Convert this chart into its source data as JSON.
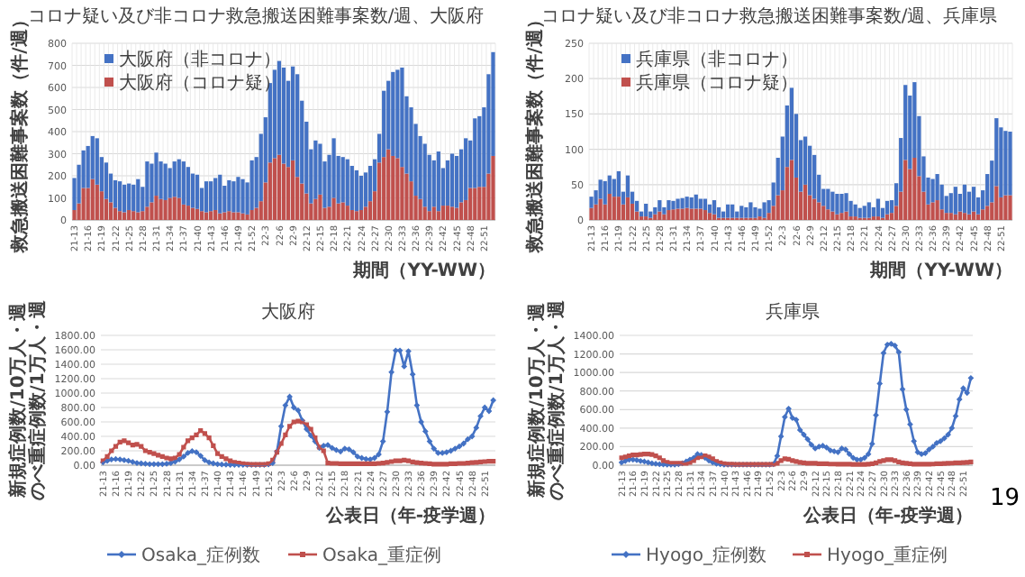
{
  "chart_data": [
    {
      "type": "bar",
      "stacked": true,
      "title": "コロナ疑い及び非コロナ救急搬送困難事案数/週、大阪府",
      "xlabel": "期間（YY-WW）",
      "ylabel": "救急搬送困難事案数（件/週）",
      "legend": "top left",
      "grid": true,
      "categories": [
        "21-13",
        null,
        null,
        "21-16",
        null,
        null,
        "21-19",
        null,
        null,
        "21-22",
        null,
        null,
        "21-25",
        null,
        null,
        "21-28",
        null,
        null,
        "21-31",
        null,
        null,
        "21-34",
        null,
        null,
        "21-37",
        null,
        null,
        "21-40",
        null,
        null,
        "21-43",
        null,
        null,
        "21-46",
        null,
        null,
        "21-49",
        null,
        null,
        "21-52",
        null,
        null,
        "22-3",
        null,
        null,
        "22-6",
        null,
        null,
        "22-9",
        null,
        null,
        "22-12",
        null,
        null,
        "22-15",
        null,
        null,
        "22-18",
        null,
        null,
        "22-21",
        null,
        null,
        "22-24",
        null,
        null,
        "22-27",
        null,
        null,
        "22-30",
        null,
        null,
        "22-33",
        null,
        null,
        "22-36",
        null,
        null,
        "22-39",
        null,
        null,
        "22-42",
        null,
        null,
        "22-45",
        null,
        null,
        "22-48",
        null,
        null,
        "22-51",
        null,
        null
      ],
      "ylim": [
        0,
        800
      ],
      "yticks": [
        0,
        100,
        200,
        300,
        400,
        500,
        600,
        700,
        800
      ],
      "series": [
        {
          "name": "大阪府（コロナ疑）",
          "color": "#c0504d",
          "values": [
            45,
            75,
            145,
            145,
            185,
            160,
            130,
            95,
            80,
            55,
            40,
            35,
            45,
            40,
            35,
            40,
            60,
            80,
            110,
            95,
            90,
            100,
            105,
            100,
            70,
            65,
            55,
            50,
            40,
            35,
            40,
            45,
            30,
            35,
            40,
            35,
            35,
            30,
            25,
            45,
            55,
            85,
            170,
            260,
            280,
            295,
            255,
            240,
            270,
            195,
            165,
            120,
            75,
            95,
            115,
            55,
            60,
            100,
            75,
            80,
            65,
            45,
            40,
            45,
            60,
            85,
            130,
            260,
            285,
            320,
            290,
            280,
            240,
            210,
            175,
            110,
            95,
            60,
            40,
            60,
            40,
            65,
            65,
            60,
            55,
            80,
            90,
            145,
            145,
            150,
            150,
            210,
            290
          ]
        },
        {
          "name": "大阪府（非コロナ）",
          "color": "#4472c4",
          "values": [
            145,
            175,
            170,
            190,
            195,
            210,
            155,
            165,
            130,
            125,
            135,
            125,
            120,
            120,
            150,
            110,
            205,
            175,
            195,
            170,
            165,
            135,
            160,
            175,
            195,
            175,
            155,
            155,
            105,
            140,
            135,
            145,
            175,
            120,
            140,
            140,
            160,
            155,
            145,
            225,
            230,
            305,
            295,
            360,
            400,
            425,
            435,
            390,
            425,
            465,
            375,
            325,
            245,
            265,
            230,
            210,
            235,
            270,
            215,
            205,
            210,
            200,
            185,
            155,
            155,
            160,
            145,
            130,
            300,
            310,
            380,
            400,
            450,
            350,
            335,
            325,
            285,
            285,
            255,
            210,
            270,
            170,
            205,
            240,
            235,
            240,
            280,
            215,
            315,
            320,
            360,
            450,
            470
          ]
        }
      ]
    },
    {
      "type": "bar",
      "stacked": true,
      "title": "コロナ疑い及び非コロナ救急搬送困難事案数/週、兵庫県",
      "xlabel": "期間（YY-WW）",
      "ylabel": "救急搬送困難事案数（件/週）",
      "legend": "top left",
      "grid": true,
      "categories": [
        "21-13",
        null,
        null,
        "21-16",
        null,
        null,
        "21-19",
        null,
        null,
        "21-22",
        null,
        null,
        "21-25",
        null,
        null,
        "21-28",
        null,
        null,
        "21-31",
        null,
        null,
        "21-34",
        null,
        null,
        "21-37",
        null,
        null,
        "21-40",
        null,
        null,
        "21-43",
        null,
        null,
        "21-46",
        null,
        null,
        "21-49",
        null,
        null,
        "21-52",
        null,
        null,
        "22-3",
        null,
        null,
        "22-6",
        null,
        null,
        "22-9",
        null,
        null,
        "22-12",
        null,
        null,
        "22-15",
        null,
        null,
        "22-18",
        null,
        null,
        "22-21",
        null,
        null,
        "22-24",
        null,
        null,
        "22-27",
        null,
        null,
        "22-30",
        null,
        null,
        "22-33",
        null,
        null,
        "22-36",
        null,
        null,
        "22-39",
        null,
        null,
        "22-42",
        null,
        null,
        "22-45",
        null,
        null,
        "22-48",
        null,
        null,
        "22-51",
        null,
        null
      ],
      "ylim": [
        0,
        250
      ],
      "yticks": [
        0,
        50,
        100,
        150,
        200,
        250
      ],
      "series": [
        {
          "name": "兵庫県（コロナ疑）",
          "color": "#c0504d",
          "values": [
            17,
            22,
            30,
            22,
            37,
            33,
            33,
            22,
            32,
            23,
            12,
            5,
            5,
            3,
            8,
            12,
            8,
            14,
            15,
            16,
            16,
            17,
            16,
            16,
            16,
            14,
            10,
            8,
            3,
            3,
            3,
            3,
            3,
            3,
            3,
            3,
            3,
            5,
            3,
            10,
            20,
            35,
            42,
            75,
            85,
            60,
            40,
            50,
            35,
            30,
            25,
            20,
            15,
            12,
            8,
            10,
            12,
            5,
            5,
            3,
            3,
            3,
            5,
            5,
            3,
            8,
            10,
            20,
            40,
            85,
            72,
            88,
            62,
            40,
            22,
            25,
            28,
            15,
            10,
            10,
            8,
            12,
            10,
            8,
            12,
            8,
            15,
            20,
            25,
            48,
            32,
            35,
            35
          ]
        },
        {
          "name": "兵庫県（非コロナ）",
          "color": "#4472c4",
          "values": [
            16,
            20,
            27,
            33,
            26,
            25,
            36,
            18,
            31,
            17,
            15,
            7,
            18,
            9,
            10,
            16,
            10,
            14,
            12,
            14,
            15,
            16,
            16,
            20,
            14,
            16,
            12,
            20,
            15,
            9,
            19,
            19,
            9,
            17,
            15,
            22,
            15,
            11,
            22,
            18,
            33,
            53,
            76,
            87,
            102,
            90,
            73,
            68,
            70,
            62,
            39,
            24,
            29,
            28,
            29,
            27,
            26,
            22,
            17,
            14,
            17,
            22,
            13,
            25,
            14,
            19,
            18,
            32,
            76,
            106,
            104,
            107,
            85,
            50,
            38,
            33,
            37,
            35,
            24,
            28,
            39,
            25,
            40,
            32,
            35,
            24,
            27,
            45,
            59,
            96,
            99,
            91,
            90
          ]
        }
      ]
    },
    {
      "type": "line",
      "title": "大阪府",
      "xlabel": "公表日（年-疫学週）",
      "ylabel": "新規症例数/10万人・週のべ重症例数/1万人・週",
      "legend": "bottom",
      "grid": "y",
      "categories": [
        "21-13",
        null,
        null,
        "21-16",
        null,
        null,
        "21-19",
        null,
        null,
        "21-22",
        null,
        null,
        "21-25",
        null,
        null,
        "21-28",
        null,
        null,
        "21-31",
        null,
        null,
        "21-34",
        null,
        null,
        "21-37",
        null,
        null,
        "21-40",
        null,
        null,
        "21-43",
        null,
        null,
        "21-46",
        null,
        null,
        "21-49",
        null,
        null,
        "21-52",
        null,
        null,
        "22-3",
        null,
        null,
        "22-6",
        null,
        null,
        "22-9",
        null,
        null,
        "22-12",
        null,
        null,
        "22-15",
        null,
        null,
        "22-18",
        null,
        null,
        "22-21",
        null,
        null,
        "22-24",
        null,
        null,
        "22-27",
        null,
        null,
        "22-30",
        null,
        null,
        "22-33",
        null,
        null,
        "22-36",
        null,
        null,
        "22-39",
        null,
        null,
        "22-42",
        null,
        null,
        "22-45",
        null,
        null,
        "22-48",
        null,
        null,
        "22-51",
        null,
        null
      ],
      "ylim": [
        0,
        1800
      ],
      "yticks": [
        {
          "value": 0,
          "label": "0.00"
        },
        {
          "value": 200,
          "label": "200.00"
        },
        {
          "value": 400,
          "label": "400.00"
        },
        {
          "value": 600,
          "label": "600.00"
        },
        {
          "value": 800,
          "label": "800.00"
        },
        {
          "value": 1000,
          "label": "1000.00"
        },
        {
          "value": 1200,
          "label": "1200.00"
        },
        {
          "value": 1400,
          "label": "1400.00"
        },
        {
          "value": 1600,
          "label": "1600.00"
        },
        {
          "value": 1800,
          "label": "1800.00"
        }
      ],
      "series": [
        {
          "name": "Osaka_症例数",
          "color": "#4472c4",
          "marker": "diamond",
          "values": [
            40,
            60,
            80,
            85,
            80,
            70,
            60,
            45,
            30,
            25,
            20,
            15,
            15,
            15,
            15,
            20,
            30,
            50,
            80,
            120,
            170,
            195,
            180,
            130,
            70,
            40,
            25,
            15,
            10,
            8,
            5,
            5,
            5,
            5,
            5,
            5,
            5,
            5,
            5,
            10,
            30,
            190,
            540,
            830,
            950,
            800,
            760,
            620,
            500,
            410,
            330,
            240,
            270,
            280,
            240,
            210,
            190,
            230,
            220,
            180,
            120,
            100,
            85,
            80,
            100,
            150,
            330,
            740,
            1290,
            1590,
            1590,
            1370,
            1580,
            1260,
            830,
            600,
            470,
            330,
            230,
            170,
            170,
            180,
            200,
            230,
            260,
            300,
            360,
            400,
            520,
            680,
            800,
            750,
            900
          ]
        },
        {
          "name": "Osaka_重症例",
          "color": "#c0504d",
          "marker": "square",
          "values": [
            60,
            120,
            200,
            260,
            320,
            340,
            310,
            280,
            290,
            260,
            200,
            180,
            160,
            140,
            120,
            100,
            90,
            100,
            150,
            250,
            340,
            380,
            420,
            480,
            440,
            380,
            270,
            160,
            120,
            90,
            60,
            40,
            30,
            20,
            15,
            10,
            10,
            10,
            10,
            20,
            70,
            180,
            300,
            420,
            540,
            600,
            610,
            600,
            560,
            500,
            380,
            250,
            200,
            30,
            25,
            25,
            20,
            20,
            20,
            20,
            20,
            20,
            20,
            20,
            20,
            25,
            30,
            40,
            50,
            60,
            60,
            70,
            60,
            45,
            35,
            30,
            25,
            20,
            15,
            15,
            15,
            15,
            20,
            20,
            25,
            25,
            30,
            35,
            40,
            45,
            50,
            55,
            55
          ]
        }
      ]
    },
    {
      "type": "line",
      "title": "兵庫県",
      "xlabel": "公表日（年-疫学週）",
      "ylabel": "新規症例数/10万人・週のべ重症例数/1万人・週",
      "legend": "bottom",
      "grid": "y",
      "annotations": [
        "19"
      ],
      "categories": [
        "21-13",
        null,
        null,
        "21-16",
        null,
        null,
        "21-19",
        null,
        null,
        "21-22",
        null,
        null,
        "21-25",
        null,
        null,
        "21-28",
        null,
        null,
        "21-31",
        null,
        null,
        "21-34",
        null,
        null,
        "21-37",
        null,
        null,
        "21-40",
        null,
        null,
        "21-43",
        null,
        null,
        "21-46",
        null,
        null,
        "21-49",
        null,
        null,
        "21-52",
        null,
        null,
        "22-3",
        null,
        null,
        "22-6",
        null,
        null,
        "22-9",
        null,
        null,
        "22-12",
        null,
        null,
        "22-15",
        null,
        null,
        "22-18",
        null,
        null,
        "22-21",
        null,
        null,
        "22-24",
        null,
        null,
        "22-27",
        null,
        null,
        "22-30",
        null,
        null,
        "22-33",
        null,
        null,
        "22-36",
        null,
        null,
        "22-39",
        null,
        null,
        "22-42",
        null,
        null,
        "22-45",
        null,
        null,
        "22-48",
        null,
        null,
        "22-51",
        null,
        null
      ],
      "ylim": [
        0,
        1400
      ],
      "yticks": [
        {
          "value": 0,
          "label": "0.00"
        },
        {
          "value": 200,
          "label": "200.00"
        },
        {
          "value": 400,
          "label": "400.00"
        },
        {
          "value": 600,
          "label": "600.00"
        },
        {
          "value": 800,
          "label": "800.00"
        },
        {
          "value": 1000,
          "label": "1000.00"
        },
        {
          "value": 1200,
          "label": "1200.00"
        },
        {
          "value": 1400,
          "label": "1400.00"
        }
      ],
      "series": [
        {
          "name": "Hyogo_症例数",
          "color": "#4472c4",
          "marker": "diamond",
          "values": [
            30,
            45,
            60,
            60,
            55,
            45,
            40,
            30,
            20,
            15,
            10,
            8,
            5,
            5,
            5,
            10,
            20,
            40,
            60,
            80,
            120,
            110,
            80,
            50,
            30,
            15,
            10,
            5,
            5,
            5,
            5,
            5,
            5,
            5,
            5,
            5,
            5,
            5,
            5,
            5,
            10,
            100,
            310,
            520,
            610,
            510,
            490,
            380,
            330,
            280,
            220,
            180,
            200,
            210,
            190,
            160,
            150,
            140,
            180,
            170,
            120,
            80,
            60,
            60,
            80,
            120,
            230,
            540,
            880,
            1210,
            1300,
            1310,
            1290,
            1220,
            820,
            600,
            440,
            260,
            140,
            120,
            130,
            170,
            200,
            240,
            260,
            290,
            330,
            400,
            530,
            710,
            830,
            780,
            940
          ]
        },
        {
          "name": "Hyogo_重症例",
          "color": "#c0504d",
          "marker": "square",
          "values": [
            80,
            90,
            100,
            110,
            110,
            115,
            120,
            120,
            115,
            100,
            80,
            50,
            30,
            20,
            20,
            20,
            20,
            20,
            30,
            50,
            80,
            90,
            100,
            90,
            70,
            40,
            25,
            15,
            10,
            10,
            8,
            8,
            8,
            8,
            8,
            8,
            8,
            8,
            8,
            8,
            10,
            20,
            50,
            70,
            65,
            50,
            40,
            30,
            25,
            20,
            20,
            20,
            15,
            15,
            15,
            12,
            12,
            10,
            10,
            10,
            10,
            8,
            8,
            8,
            8,
            10,
            15,
            25,
            40,
            50,
            60,
            60,
            50,
            35,
            25,
            20,
            15,
            10,
            10,
            10,
            10,
            10,
            12,
            15,
            15,
            18,
            20,
            22,
            25,
            25,
            28,
            30,
            35
          ]
        }
      ]
    }
  ]
}
